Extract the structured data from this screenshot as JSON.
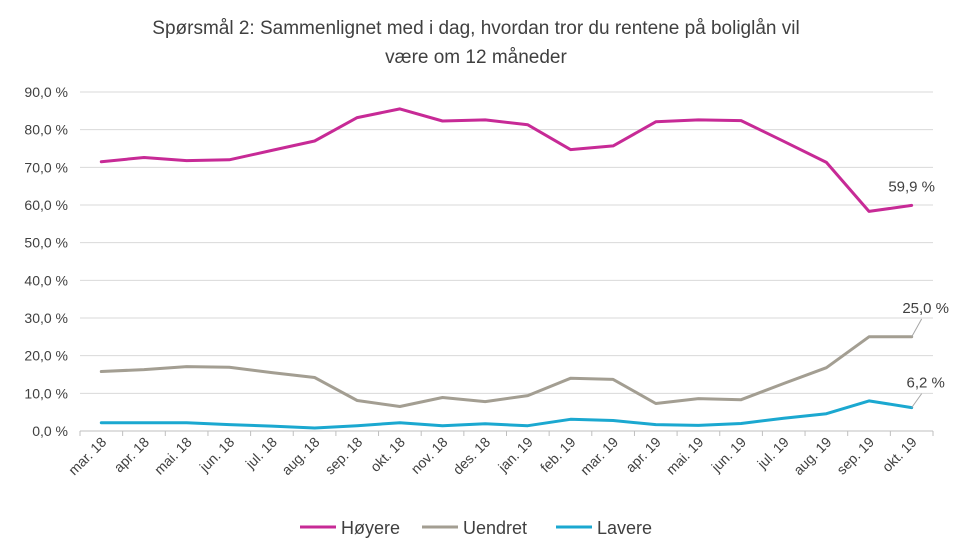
{
  "chart_data": {
    "type": "line",
    "title_lines": [
      "Spørsmål 2: Sammenlignet  med i dag, hvordan tror du rentene på boliglån vil",
      "være om 12 måneder"
    ],
    "categories": [
      "mar. 18",
      "apr. 18",
      "mai. 18",
      "jun. 18",
      "jul. 18",
      "aug. 18",
      "sep. 18",
      "okt. 18",
      "nov. 18",
      "des. 18",
      "jan. 19",
      "feb. 19",
      "mar. 19",
      "apr. 19",
      "mai. 19",
      "jun. 19",
      "jul. 19",
      "aug. 19",
      "sep. 19",
      "okt. 19"
    ],
    "y_ticks": [
      "0,0 %",
      "10,0 %",
      "20,0 %",
      "30,0 %",
      "40,0 %",
      "50,0 %",
      "60,0 %",
      "70,0 %",
      "80,0 %",
      "90,0 %"
    ],
    "ylim": [
      0,
      90
    ],
    "grid": true,
    "legend_position": "bottom",
    "series": [
      {
        "name": "Høyere",
        "color": "#c72a96",
        "values": [
          71.5,
          72.6,
          71.8,
          72.0,
          74.5,
          77.0,
          83.2,
          85.5,
          82.3,
          82.6,
          81.3,
          74.7,
          75.7,
          82.1,
          82.6,
          82.4,
          76.9,
          71.3,
          58.3,
          59.9
        ],
        "end_label": "59,9 %"
      },
      {
        "name": "Uendret",
        "color": "#a39e92",
        "values": [
          15.8,
          16.3,
          17.1,
          16.9,
          15.5,
          14.2,
          8.1,
          6.5,
          8.9,
          7.8,
          9.4,
          14.0,
          13.7,
          7.3,
          8.6,
          8.3,
          12.6,
          16.8,
          25.0,
          25.0
        ],
        "end_label": "25,0 %"
      },
      {
        "name": "Lavere",
        "color": "#1ba8d0",
        "values": [
          2.2,
          2.2,
          2.2,
          1.7,
          1.3,
          0.8,
          1.4,
          2.2,
          1.4,
          1.9,
          1.4,
          3.1,
          2.8,
          1.7,
          1.5,
          2.0,
          3.4,
          4.6,
          8.0,
          6.2
        ],
        "end_label": "6,2 %"
      }
    ]
  }
}
